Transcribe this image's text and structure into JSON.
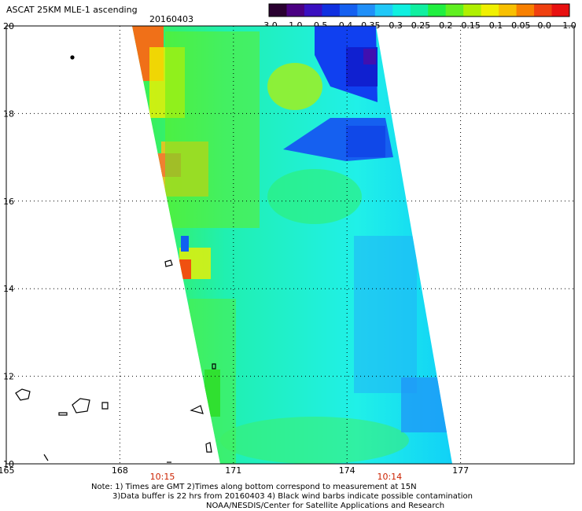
{
  "header": {
    "title": "ASCAT 25KM MLE-1 ascending",
    "date": "20160403"
  },
  "colorbar": {
    "tick_labels": [
      "-3.0",
      "-1.0",
      "-0.5",
      "-0.4",
      "-0.35",
      "-0.3",
      "-0.25",
      "-0.2",
      "-0.15",
      "-0.1",
      "-0.05",
      "0.0",
      "1.0"
    ],
    "colors": [
      "#2a0030",
      "#4b0082",
      "#3a10c0",
      "#1030e0",
      "#1560f0",
      "#2090f8",
      "#20c8f8",
      "#10f0e0",
      "#10f0a0",
      "#20f040",
      "#60f020",
      "#b0f000",
      "#f0f000",
      "#f8c000",
      "#f88000",
      "#f04010",
      "#e81010"
    ]
  },
  "map": {
    "lon_ticks": [
      "165",
      "168",
      "171",
      "174",
      "177"
    ],
    "lat_ticks": [
      "20",
      "18",
      "16",
      "14",
      "12",
      "10"
    ],
    "pass_times": [
      {
        "label": "10:15",
        "lon": 169.0
      },
      {
        "label": "10:14",
        "lon": 175.0
      }
    ],
    "swath_color_low": "#0030e0",
    "swath_color_mid": "#20f0e8",
    "swath_color_high": "#f04010"
  },
  "notes": {
    "line1": "Note: 1) Times are GMT 2)Times along bottom correspond to measurement at 15N",
    "line2": "3)Data buffer is 22 hrs from 20160403 4) Black wind barbs indicate possible contamination",
    "line3": "NOAA/NESDIS/Center for Satellite Applications and Research"
  }
}
